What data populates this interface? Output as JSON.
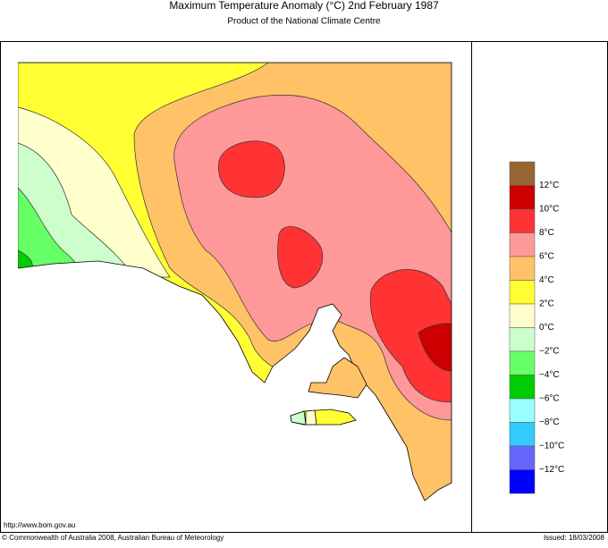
{
  "header": {
    "title": "Maximum Temperature Anomaly (°C)  2nd February 1987",
    "subtitle": "Product of the National Climate Centre"
  },
  "legend": {
    "colors": [
      "#996633",
      "#cc0000",
      "#ff3333",
      "#ff9999",
      "#ffc266",
      "#ffff33",
      "#ffffcc",
      "#ccffcc",
      "#66ff66",
      "#00cc00",
      "#99ffff",
      "#33ccff",
      "#6666ff",
      "#0000ff"
    ],
    "labels": [
      "12°C",
      "10°C",
      "8°C",
      "6°C",
      "4°C",
      "2°C",
      "0°C",
      "−2°C",
      "−4°C",
      "−6°C",
      "−8°C",
      "−10°C",
      "−12°C"
    ]
  },
  "footer": {
    "url": "http://www.bom.gov.au",
    "copyright": "© Commonwealth of Australia 2008, Australian Bureau of Meteorology",
    "issued": "Issued: 18/03/2008"
  }
}
